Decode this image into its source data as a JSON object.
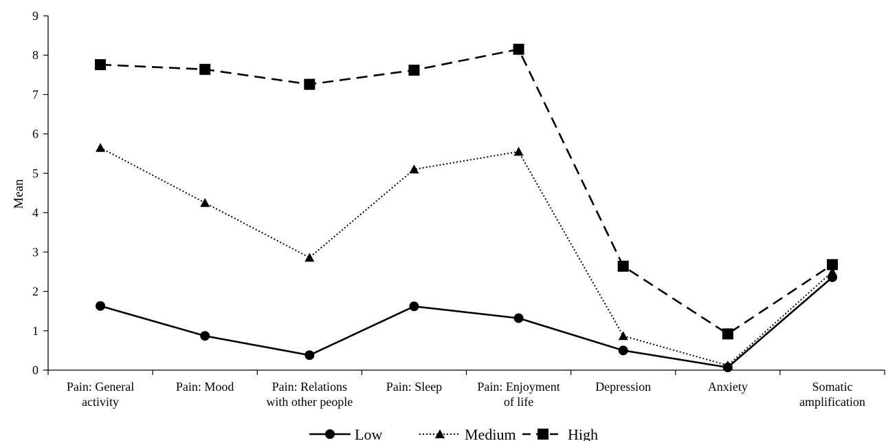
{
  "chart_data": {
    "type": "line",
    "ylabel": "Mean",
    "ylim": [
      0,
      9
    ],
    "yticks": [
      0,
      1,
      2,
      3,
      4,
      5,
      6,
      7,
      8,
      9
    ],
    "categories": [
      [
        "Pain: General",
        "activity"
      ],
      [
        "Pain: Mood"
      ],
      [
        "Pain: Relations",
        "with other people"
      ],
      [
        "Pain: Sleep"
      ],
      [
        "Pain: Enjoyment",
        "of life"
      ],
      [
        "Depression"
      ],
      [
        "Anxiety"
      ],
      [
        "Somatic",
        "amplification"
      ]
    ],
    "series": [
      {
        "name": "Low",
        "marker": "circle",
        "line": "solid",
        "values": [
          1.63,
          0.87,
          0.38,
          1.62,
          1.32,
          0.5,
          0.07,
          2.36
        ]
      },
      {
        "name": "Medium",
        "marker": "triangle",
        "line": "dotted",
        "values": [
          5.65,
          4.25,
          2.86,
          5.1,
          5.55,
          0.87,
          0.12,
          2.5
        ]
      },
      {
        "name": "High",
        "marker": "square",
        "line": "dashed",
        "values": [
          7.76,
          7.64,
          7.26,
          7.62,
          8.15,
          2.64,
          0.92,
          2.68
        ]
      }
    ],
    "grid": false,
    "legend": "bottom",
    "colors": {
      "line": "#000000"
    }
  }
}
